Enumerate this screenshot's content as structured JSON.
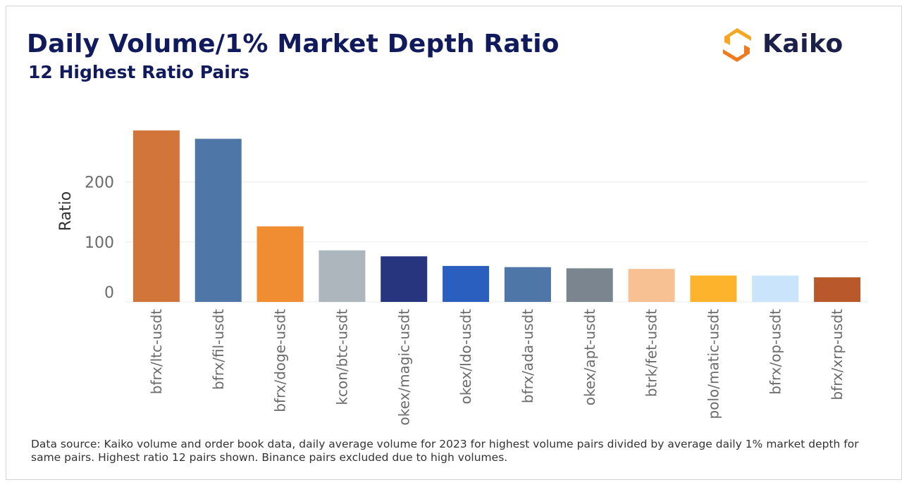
{
  "header": {
    "title": "Daily Volume/1% Market Depth Ratio",
    "subtitle": "12 Highest Ratio Pairs"
  },
  "logo": {
    "text": "Kaiko",
    "icon": "kaiko-hexagon-icon",
    "colors": [
      "#f6a623",
      "#f07a1f"
    ]
  },
  "footnote": "Data source: Kaiko volume and order book data, daily average volume for 2023 for highest volume pairs divided by average daily 1% market depth for same pairs. Highest ratio 12 pairs shown. Binance pairs excluded due to high volumes.",
  "chart_data": {
    "type": "bar",
    "ylabel": "Ratio",
    "ylim": [
      0,
      290
    ],
    "yticks": [
      0,
      100,
      200
    ],
    "grid": true,
    "categories": [
      "bfrx/ltc-usdt",
      "bfrx/fil-usdt",
      "bfrx/doge-usdt",
      "kcon/btc-usdt",
      "okex/magic-usdt",
      "okex/ldo-usdt",
      "bfrx/ada-usdt",
      "okex/apt-usdt",
      "btrk/fet-usdt",
      "polo/matic-usdt",
      "bfrx/op-usdt",
      "bfrx/xrp-usdt"
    ],
    "values": [
      286,
      272,
      126,
      86,
      76,
      60,
      58,
      56,
      55,
      44,
      44,
      41
    ],
    "colors": [
      "#d2753a",
      "#4e76a6",
      "#f08d32",
      "#adb5bd",
      "#27357e",
      "#2b5fbf",
      "#4e76a6",
      "#7b858f",
      "#f7c193",
      "#fdb42c",
      "#c9e4fb",
      "#b9592b"
    ]
  }
}
